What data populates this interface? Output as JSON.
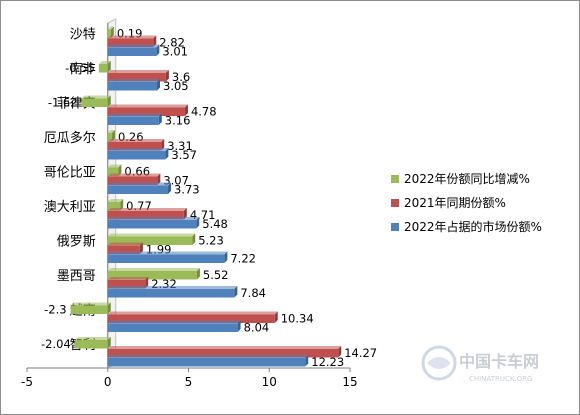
{
  "chart_data": {
    "type": "bar",
    "orientation": "horizontal",
    "categories": [
      "沙特",
      "南非",
      "菲律宾",
      "厄瓜多尔",
      "哥伦比亚",
      "澳大利亚",
      "俄罗斯",
      "墨西哥",
      "越南",
      "智利"
    ],
    "series": [
      {
        "name": "2022年份额同比增减%",
        "color": "#9bbb59",
        "values": [
          0.19,
          -0.55,
          -1.62,
          0.26,
          0.66,
          0.77,
          5.23,
          5.52,
          -2.3,
          -2.04
        ]
      },
      {
        "name": "2021年同期份额%",
        "color": "#c0504d",
        "values": [
          2.82,
          3.6,
          4.78,
          3.31,
          3.07,
          4.71,
          1.99,
          2.32,
          10.34,
          14.27
        ]
      },
      {
        "name": "2022年占据的市场份额%",
        "color": "#4f81bd",
        "values": [
          3.01,
          3.05,
          3.16,
          3.57,
          3.73,
          5.48,
          7.22,
          7.84,
          8.04,
          12.23
        ]
      }
    ],
    "xlim": [
      -5,
      15
    ],
    "xticks": [
      -5,
      0,
      5,
      10,
      15
    ],
    "grid": false,
    "legend_position": "right"
  },
  "watermark": {
    "title": "中国卡车网",
    "subtitle": "CHINATRUCK.ORG"
  }
}
